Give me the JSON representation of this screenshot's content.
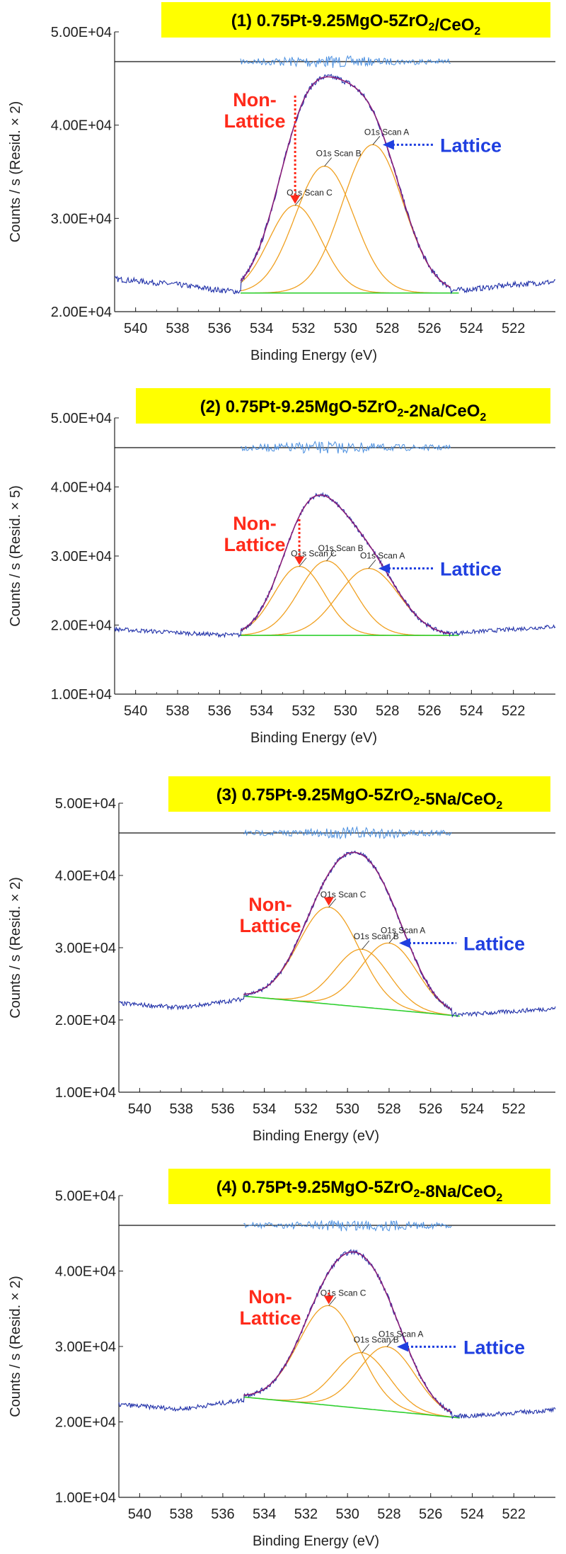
{
  "chart_data": [
    {
      "type": "line",
      "title": "(1) 0.75Pt-9.25MgO-5ZrO",
      "title_sub": "2",
      "title_mid": "/CeO",
      "title_sub2": "2",
      "title_tail": "",
      "xlabel": "Binding Energy (eV)",
      "ylabel": "Counts / s  (Resid. × 2)",
      "xlim": [
        541,
        520
      ],
      "ylim": [
        20000,
        50000
      ],
      "xticks": [
        "540",
        "538",
        "536",
        "534",
        "532",
        "530",
        "528",
        "526",
        "524",
        "522"
      ],
      "yticks": [
        "2.00E+04",
        "3.00E+04",
        "4.00E+04",
        "5.00E+04"
      ],
      "yticks_val": [
        20000,
        30000,
        40000,
        50000
      ],
      "baseline": [
        [
          535,
          22000
        ],
        [
          525,
          22000
        ]
      ],
      "background": [
        [
          541,
          23500
        ],
        [
          538,
          22900
        ],
        [
          536,
          22300
        ],
        [
          534,
          22000
        ],
        [
          530,
          22000
        ],
        [
          526,
          22100
        ],
        [
          524,
          22400
        ],
        [
          522,
          22900
        ],
        [
          520,
          23200
        ]
      ],
      "residual_level": 47000,
      "peaks": [
        {
          "name": "O1s Scan C",
          "center": 532.4,
          "height": 9400,
          "width": 1.25
        },
        {
          "name": "O1s Scan B",
          "center": 531.0,
          "height": 13600,
          "width": 1.4
        },
        {
          "name": "O1s Scan A",
          "center": 528.7,
          "height": 15900,
          "width": 1.45
        }
      ],
      "annotations": {
        "nonlattice": "Non-\nLattice",
        "lattice": "Lattice"
      }
    },
    {
      "type": "line",
      "title": "(2) 0.75Pt-9.25MgO-5ZrO",
      "title_sub": "2",
      "title_mid": "-2Na/CeO",
      "title_sub2": "2",
      "title_tail": "",
      "xlabel": "Binding Energy (eV)",
      "ylabel": "Counts / s  (Resid. × 5)",
      "xlim": [
        541,
        520
      ],
      "ylim": [
        10000,
        50000
      ],
      "xticks": [
        "540",
        "538",
        "536",
        "534",
        "532",
        "530",
        "528",
        "526",
        "524",
        "522"
      ],
      "yticks": [
        "1.00E+04",
        "2.00E+04",
        "3.00E+04",
        "4.00E+04",
        "5.00E+04"
      ],
      "yticks_val": [
        10000,
        20000,
        30000,
        40000,
        50000
      ],
      "baseline": [
        [
          535,
          18500
        ],
        [
          525,
          18500
        ]
      ],
      "background": [
        [
          541,
          19400
        ],
        [
          538,
          18900
        ],
        [
          536,
          18600
        ],
        [
          534,
          18500
        ],
        [
          530,
          18500
        ],
        [
          526,
          18600
        ],
        [
          524,
          19000
        ],
        [
          522,
          19400
        ],
        [
          520,
          19800
        ]
      ],
      "residual_level": 45000,
      "peaks": [
        {
          "name": "O1s Scan C",
          "center": 532.2,
          "height": 10000,
          "width": 1.2
        },
        {
          "name": "O1s Scan B",
          "center": 530.9,
          "height": 10800,
          "width": 1.3
        },
        {
          "name": "O1s Scan A",
          "center": 528.9,
          "height": 9700,
          "width": 1.45
        }
      ],
      "annotations": {
        "nonlattice": "Non-\nLattice",
        "lattice": "Lattice"
      }
    },
    {
      "type": "line",
      "title": "(3) 0.75Pt-9.25MgO-5ZrO",
      "title_sub": "2",
      "title_mid": "-5Na/CeO",
      "title_sub2": "2",
      "title_tail": "",
      "xlabel": "Binding Energy (eV)",
      "ylabel": "Counts / s  (Resid. × 2)",
      "xlim": [
        541,
        520
      ],
      "ylim": [
        10000,
        50000
      ],
      "xticks": [
        "540",
        "538",
        "536",
        "534",
        "532",
        "530",
        "528",
        "526",
        "524",
        "522"
      ],
      "yticks": [
        "1.00E+04",
        "2.00E+04",
        "3.00E+04",
        "4.00E+04",
        "5.00E+04"
      ],
      "yticks_val": [
        10000,
        20000,
        30000,
        40000,
        50000
      ],
      "baseline": [
        [
          535,
          23300
        ],
        [
          524.5,
          20500
        ]
      ],
      "background": [
        [
          541,
          22300
        ],
        [
          538,
          21700
        ],
        [
          536,
          22500
        ],
        [
          534,
          23300
        ],
        [
          532,
          23000
        ],
        [
          530,
          22000
        ],
        [
          528,
          21200
        ],
        [
          526,
          20700
        ],
        [
          524,
          20800
        ],
        [
          522,
          21200
        ],
        [
          520,
          21600
        ]
      ],
      "residual_level": 46000,
      "peaks": [
        {
          "name": "O1s Scan C",
          "center": 530.9,
          "height": 13400,
          "width": 1.45
        },
        {
          "name": "O1s Scan B",
          "center": 529.3,
          "height": 8000,
          "width": 1.3
        },
        {
          "name": "O1s Scan A",
          "center": 528.0,
          "height": 9200,
          "width": 1.35
        }
      ],
      "annotations": {
        "nonlattice": "Non-\nLattice",
        "lattice": "Lattice"
      }
    },
    {
      "type": "line",
      "title": "(4) 0.75Pt-9.25MgO-5ZrO",
      "title_sub": "2",
      "title_mid": "-8Na/CeO",
      "title_sub2": "2",
      "title_tail": "",
      "xlabel": "Binding Energy (eV)",
      "ylabel": "Counts / s  (Resid. × 2)",
      "xlim": [
        541,
        520
      ],
      "ylim": [
        10000,
        50000
      ],
      "xticks": [
        "540",
        "538",
        "536",
        "534",
        "532",
        "530",
        "528",
        "526",
        "524",
        "522"
      ],
      "yticks": [
        "1.00E+04",
        "2.00E+04",
        "3.00E+04",
        "4.00E+04",
        "5.00E+04"
      ],
      "yticks_val": [
        10000,
        20000,
        30000,
        40000,
        50000
      ],
      "baseline": [
        [
          535,
          23300
        ],
        [
          524.5,
          20500
        ]
      ],
      "background": [
        [
          541,
          22300
        ],
        [
          538,
          21700
        ],
        [
          536,
          22500
        ],
        [
          534,
          23300
        ],
        [
          532,
          23000
        ],
        [
          530,
          22000
        ],
        [
          528,
          21200
        ],
        [
          526,
          20700
        ],
        [
          524,
          20800
        ],
        [
          522,
          21200
        ],
        [
          520,
          21600
        ]
      ],
      "residual_level": 46000,
      "peaks": [
        {
          "name": "O1s Scan C",
          "center": 530.9,
          "height": 13200,
          "width": 1.45
        },
        {
          "name": "O1s Scan B",
          "center": 529.3,
          "height": 7400,
          "width": 1.3
        },
        {
          "name": "O1s Scan A",
          "center": 528.1,
          "height": 8500,
          "width": 1.35
        }
      ],
      "annotations": {
        "nonlattice": "Non-\nLattice",
        "lattice": "Lattice"
      }
    }
  ],
  "colors": {
    "raw": "#1f2fa8",
    "envelope": "#8a1f7a",
    "component": "#f0a020",
    "baseline": "#2fd030",
    "residual": "#4a8fe0",
    "nonlattice_arrow": "#ff2a1a",
    "lattice_arrow": "#1f3fe0",
    "title_bg": "#ffff00"
  }
}
